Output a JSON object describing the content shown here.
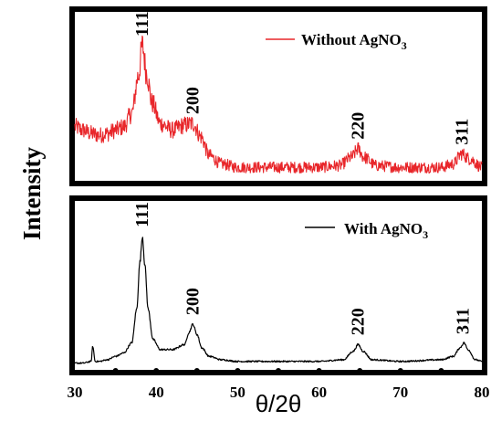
{
  "chart_data": {
    "type": "line",
    "xlabel": "θ/2θ",
    "ylabel": "Intensity",
    "xlim": [
      30,
      80
    ],
    "xticks": [
      30,
      40,
      50,
      60,
      70,
      80
    ],
    "grid": false,
    "panels": [
      {
        "position": "top",
        "color": "#e8262a",
        "legend": {
          "label_prefix": "Without AgNO",
          "label_subscript": "3",
          "placement": "top-right"
        },
        "baseline": 0.1,
        "noise": 0.055,
        "series": {
          "name": "Without AgNO3",
          "x": [
            30,
            31,
            32,
            33,
            34,
            35,
            36,
            37,
            37.8,
            38.3,
            38.8,
            39.5,
            40.5,
            42,
            43.5,
            44.5,
            45.5,
            46.5,
            48,
            50,
            55,
            60,
            62.5,
            64,
            64.8,
            65.5,
            67,
            70,
            75,
            76.5,
            77.5,
            78.5,
            80
          ],
          "y": [
            0.32,
            0.3,
            0.28,
            0.27,
            0.28,
            0.3,
            0.32,
            0.4,
            0.62,
            0.8,
            0.64,
            0.46,
            0.34,
            0.3,
            0.33,
            0.34,
            0.26,
            0.15,
            0.1,
            0.08,
            0.08,
            0.08,
            0.09,
            0.14,
            0.19,
            0.14,
            0.09,
            0.08,
            0.08,
            0.1,
            0.16,
            0.13,
            0.08
          ]
        },
        "peaks": [
          {
            "x": 38.3,
            "label": "111"
          },
          {
            "x": 44.5,
            "label": "200"
          },
          {
            "x": 64.8,
            "label": "220"
          },
          {
            "x": 77.6,
            "label": "311"
          }
        ]
      },
      {
        "position": "bottom",
        "color": "#000000",
        "legend": {
          "label_prefix": "With AgNO",
          "label_subscript": "3",
          "placement": "top-right"
        },
        "baseline": 0.05,
        "noise": 0.008,
        "series": {
          "name": "With AgNO3",
          "x": [
            30,
            31,
            32,
            32.2,
            32.5,
            33,
            34,
            35,
            36,
            37,
            37.6,
            38.0,
            38.3,
            38.6,
            39.0,
            39.6,
            40.5,
            42,
            43.5,
            44.0,
            44.5,
            45.0,
            45.6,
            46.5,
            48,
            50,
            55,
            60,
            63,
            64.2,
            64.8,
            65.4,
            66.5,
            70,
            75,
            76.5,
            77.3,
            77.8,
            78.3,
            79.2,
            80
          ],
          "y": [
            0.04,
            0.04,
            0.05,
            0.14,
            0.05,
            0.05,
            0.06,
            0.08,
            0.1,
            0.16,
            0.36,
            0.64,
            0.79,
            0.62,
            0.36,
            0.18,
            0.12,
            0.12,
            0.15,
            0.22,
            0.27,
            0.21,
            0.13,
            0.08,
            0.06,
            0.05,
            0.05,
            0.05,
            0.06,
            0.11,
            0.15,
            0.11,
            0.06,
            0.05,
            0.06,
            0.08,
            0.13,
            0.16,
            0.12,
            0.06,
            0.05
          ]
        },
        "peaks": [
          {
            "x": 38.3,
            "label": "111"
          },
          {
            "x": 44.5,
            "label": "200"
          },
          {
            "x": 64.8,
            "label": "220"
          },
          {
            "x": 77.7,
            "label": "311"
          }
        ]
      }
    ]
  }
}
